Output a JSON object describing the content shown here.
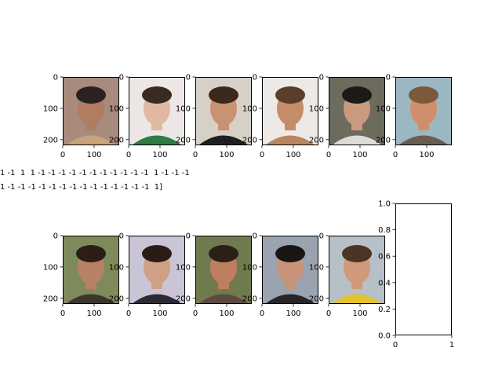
{
  "figure": {
    "label_lines": [
      "1 -1  1  1 -1 -1 -1 -1 -1 -1 -1 -1 -1 -1 -1  1 -1 -1 -1",
      "1 -1 -1 -1 -1 -1 -1 -1 -1 -1 -1 -1 -1 -1 -1  1]"
    ]
  },
  "chart_data": [
    {
      "type": "image-grid",
      "panels": [
        {
          "row": 0,
          "col": 0,
          "x_ticks": [
            "0",
            "100"
          ],
          "y_ticks": [
            "0",
            "100",
            "200"
          ],
          "image": "photo-face",
          "palette": {
            "bg": "#a88b7c",
            "hair": "#2a2220",
            "skin": "#b07c62",
            "shirt": "#c9a27e"
          }
        },
        {
          "row": 0,
          "col": 1,
          "x_ticks": [
            "0",
            "100"
          ],
          "y_ticks": [
            "0",
            "100",
            "200"
          ],
          "image": "photo-face",
          "palette": {
            "bg": "#ece7e5",
            "hair": "#3a2b22",
            "skin": "#e1b9a3",
            "shirt": "#2f7a45"
          }
        },
        {
          "row": 0,
          "col": 2,
          "x_ticks": [
            "0",
            "100"
          ],
          "y_ticks": [
            "0",
            "100",
            "200"
          ],
          "image": "photo-face",
          "palette": {
            "bg": "#d7d0c8",
            "hair": "#3b2a1c",
            "skin": "#c99272",
            "shirt": "#1f1f22"
          }
        },
        {
          "row": 0,
          "col": 3,
          "x_ticks": [
            "0",
            "100"
          ],
          "y_ticks": [
            "0",
            "100",
            "200"
          ],
          "image": "photo-face",
          "palette": {
            "bg": "#ece9e6",
            "hair": "#5a3d2a",
            "skin": "#c58c69",
            "shirt": "#b8865e"
          }
        },
        {
          "row": 0,
          "col": 4,
          "x_ticks": [
            "0",
            "100"
          ],
          "y_ticks": [
            "0",
            "100",
            "200"
          ],
          "image": "photo-face",
          "palette": {
            "bg": "#6d6a5e",
            "hair": "#1c1a18",
            "skin": "#c89a7e",
            "shirt": "#dcdcd8"
          }
        },
        {
          "row": 0,
          "col": 5,
          "x_ticks": [
            "0",
            "100"
          ],
          "y_ticks": [
            "0",
            "100",
            "200"
          ],
          "image": "photo-face",
          "palette": {
            "bg": "#9ab7c2",
            "hair": "#7a5a3a",
            "skin": "#cf8f6c",
            "shirt": "#6b5d4e"
          }
        },
        {
          "row": 1,
          "col": 0,
          "x_ticks": [
            "0",
            "100"
          ],
          "y_ticks": [
            "0",
            "100",
            "200"
          ],
          "image": "photo-face",
          "palette": {
            "bg": "#7f8a5c",
            "hair": "#2b1e16",
            "skin": "#b78165",
            "shirt": "#3b3530"
          }
        },
        {
          "row": 1,
          "col": 1,
          "x_ticks": [
            "0",
            "100"
          ],
          "y_ticks": [
            "0",
            "100",
            "200"
          ],
          "image": "photo-face",
          "palette": {
            "bg": "#c9c5d6",
            "hair": "#2a1c15",
            "skin": "#d0a085",
            "shirt": "#2c2a33"
          }
        },
        {
          "row": 1,
          "col": 2,
          "x_ticks": [
            "0",
            "100"
          ],
          "y_ticks": [
            "0",
            "100",
            "200"
          ],
          "image": "photo-face",
          "palette": {
            "bg": "#6f7a4e",
            "hair": "#2a2018",
            "skin": "#bf7f5f",
            "shirt": "#5a4a40"
          }
        },
        {
          "row": 1,
          "col": 3,
          "x_ticks": [
            "0",
            "100"
          ],
          "y_ticks": [
            "0",
            "100",
            "200"
          ],
          "image": "photo-face",
          "palette": {
            "bg": "#9aa3b0",
            "hair": "#1a1614",
            "skin": "#c79379",
            "shirt": "#26262a"
          }
        },
        {
          "row": 1,
          "col": 4,
          "x_ticks": [
            "0",
            "100"
          ],
          "y_ticks": [
            "0",
            "100",
            "200"
          ],
          "image": "photo-face",
          "palette": {
            "bg": "#b7bfc7",
            "hair": "#4a3424",
            "skin": "#d09a7a",
            "shirt": "#e3c22c"
          }
        }
      ]
    },
    {
      "type": "line",
      "series": [],
      "xlim": [
        0,
        1
      ],
      "ylim": [
        0,
        1
      ],
      "x_ticks": [
        "0",
        "1"
      ],
      "y_ticks": [
        "0.0",
        "0.2",
        "0.4",
        "0.6",
        "0.8",
        "1.0"
      ]
    }
  ]
}
